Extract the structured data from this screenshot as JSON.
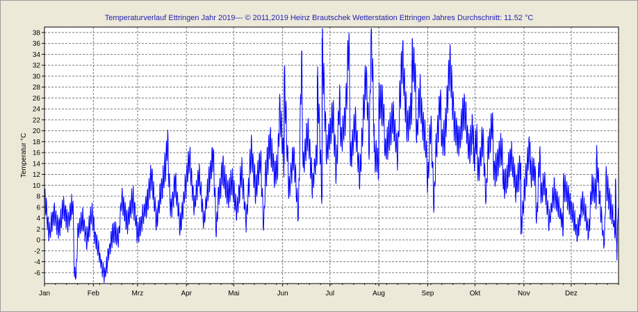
{
  "chart_data": {
    "type": "line",
    "title": "Temperaturverlauf Ettringen Jahr 2019--- © 2011,2019 Heinz Brautschek Wetterstation Ettringen Jahres Durchschnitt: 11.52 °C",
    "ylabel": "Temperatur °C",
    "xlabel": "",
    "ylim": [
      -8,
      39
    ],
    "grid": true,
    "yticks": [
      -6,
      -4,
      -2,
      0,
      2,
      4,
      6,
      8,
      10,
      12,
      14,
      16,
      18,
      20,
      22,
      24,
      26,
      28,
      30,
      32,
      34,
      36,
      38
    ],
    "xticks": [
      "Jan",
      "Feb",
      "Mrz",
      "Apr",
      "Mai",
      "Jun",
      "Jul",
      "Aug",
      "Sep",
      "Okt",
      "Nov",
      "Dez"
    ],
    "series": [
      {
        "color": "#0000FF",
        "x_unit": "day of year",
        "x": [
          1,
          4,
          7,
          10,
          13,
          16,
          19,
          22,
          25,
          28,
          31,
          33,
          36,
          39,
          42,
          45,
          48,
          51,
          54,
          57,
          60,
          63,
          66,
          69,
          72,
          75,
          78,
          81,
          84,
          87,
          90,
          93,
          96,
          99,
          102,
          105,
          108,
          111,
          114,
          117,
          120,
          123,
          126,
          129,
          132,
          135,
          138,
          141,
          144,
          147,
          150,
          153,
          156,
          159,
          162,
          165,
          168,
          171,
          174,
          177,
          180,
          183,
          186,
          189,
          192,
          195,
          198,
          201,
          204,
          207,
          210,
          213,
          216,
          219,
          222,
          225,
          228,
          231,
          234,
          237,
          240,
          243,
          246,
          249,
          252,
          255,
          258,
          261,
          264,
          267,
          270,
          273,
          276,
          279,
          282,
          285,
          288,
          291,
          294,
          297,
          300,
          303,
          306,
          309,
          312,
          315,
          318,
          321,
          324,
          327,
          330,
          333,
          336,
          339,
          342,
          345,
          348,
          351,
          354,
          357,
          360,
          363,
          365
        ],
        "y": [
          8,
          1,
          5,
          2,
          6,
          3,
          7,
          1,
          4,
          0,
          5,
          1,
          -3,
          -7,
          -2,
          2,
          0,
          6,
          3,
          8,
          1,
          4,
          7,
          12,
          3,
          9,
          14,
          5,
          11,
          2,
          9,
          15,
          6,
          12,
          3,
          10,
          16,
          7,
          13,
          8,
          11,
          5,
          13,
          3,
          17,
          9,
          15,
          11,
          18,
          12,
          24,
          14,
          9,
          16,
          4,
          13,
          20,
          10,
          17,
          8,
          15,
          21,
          12,
          18,
          23,
          14,
          22,
          11,
          27,
          17,
          21,
          14,
          24,
          18,
          23,
          15,
          34,
          20,
          25,
          18,
          23,
          17,
          22,
          15,
          26,
          19,
          33,
          21,
          18,
          24,
          16,
          21,
          12,
          19,
          15,
          22,
          14,
          17,
          11,
          16,
          9,
          14,
          11,
          18,
          13,
          16,
          11,
          3,
          9,
          6,
          2,
          8,
          5,
          1,
          7,
          3,
          10,
          8,
          4,
          11,
          6,
          1,
          9
        ]
      },
      {
        "color": "#0000FF",
        "x_unit": "day of year",
        "x": [
          20,
          21,
          50,
          79,
          110,
          140,
          149,
          153,
          155,
          164,
          174,
          177,
          181,
          184,
          188,
          194,
          205,
          208,
          209,
          210,
          213,
          217,
          226,
          234,
          236,
          239,
          244,
          248,
          253,
          268,
          273,
          275,
          281,
          286,
          292,
          297,
          303,
          309,
          313,
          316,
          330,
          335,
          346,
          351,
          356,
          361,
          363,
          364
        ],
        "y": [
          -6,
          -7,
          8,
          18,
          1,
          2,
          14,
          30,
          16,
          34,
          30,
          37,
          18,
          23,
          26,
          38,
          30,
          38,
          31,
          16,
          26,
          16,
          24,
          33,
          31,
          28,
          10,
          6,
          18,
          23,
          14,
          19,
          7,
          12,
          10,
          16,
          1,
          12,
          3,
          8,
          10,
          6,
          1,
          15,
          -1,
          5,
          11,
          -3
        ]
      }
    ]
  }
}
